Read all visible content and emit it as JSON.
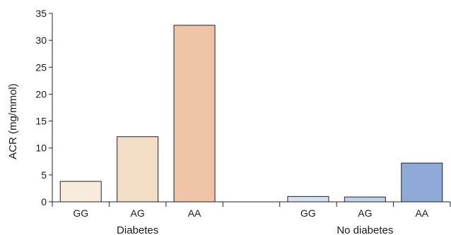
{
  "chart_data": {
    "type": "bar",
    "ylabel": "ACR (mg/mmol)",
    "ylim": [
      0,
      35
    ],
    "yticks": [
      0,
      5,
      10,
      15,
      20,
      25,
      30,
      35
    ],
    "grid": false,
    "groups": [
      {
        "label": "Diabetes",
        "bars": [
          {
            "category": "GG",
            "value": 3.8,
            "color": "#f7ecdb"
          },
          {
            "category": "AG",
            "value": 12.1,
            "color": "#f2dec4"
          },
          {
            "category": "AA",
            "value": 32.8,
            "color": "#efc3a5"
          }
        ]
      },
      {
        "label": "No diabetes",
        "bars": [
          {
            "category": "GG",
            "value": 1.0,
            "color": "#d5e0f0"
          },
          {
            "category": "AG",
            "value": 0.9,
            "color": "#bfd0ea"
          },
          {
            "category": "AA",
            "value": 7.2,
            "color": "#8eaad6"
          }
        ]
      }
    ]
  }
}
